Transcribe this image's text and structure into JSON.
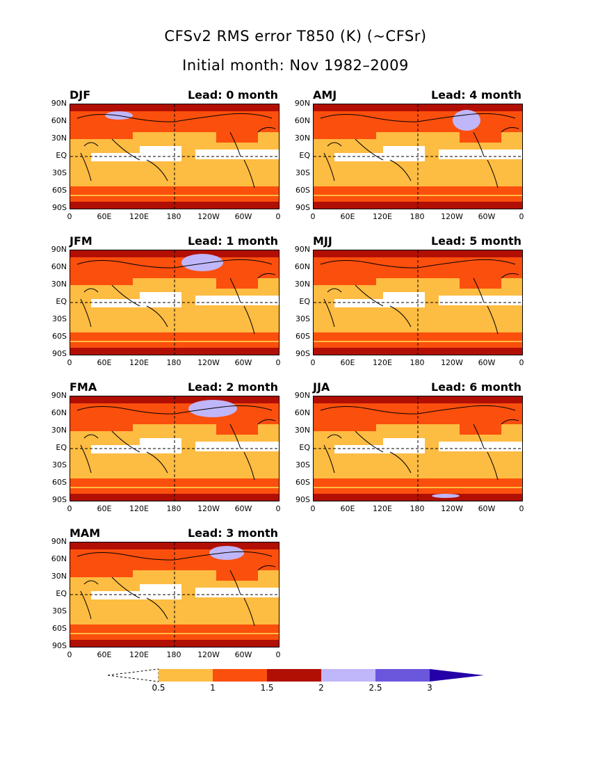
{
  "title": "CFSv2 RMS error T850 (K) (~CFSr)",
  "subtitle": "Initial month: Nov 1982–2009",
  "lead_prefix": "Lead:",
  "panels": [
    {
      "season": "DJF",
      "lead": "Lead: 0 month"
    },
    {
      "season": "AMJ",
      "lead": "Lead: 4 month"
    },
    {
      "season": "JFM",
      "lead": "Lead: 1 month"
    },
    {
      "season": "MJJ",
      "lead": "Lead: 5 month"
    },
    {
      "season": "FMA",
      "lead": "Lead: 2 month"
    },
    {
      "season": "JJA",
      "lead": "Lead: 6 month"
    },
    {
      "season": "MAM",
      "lead": "Lead: 3 month"
    }
  ],
  "lat_ticks": [
    "90N",
    "60N",
    "30N",
    "EQ",
    "30S",
    "60S",
    "90S"
  ],
  "lon_ticks": [
    "0",
    "60E",
    "120E",
    "180",
    "120W",
    "60W",
    "0"
  ],
  "colorbar": {
    "labels": [
      "0.5",
      "1",
      "1.5",
      "2",
      "2.5",
      "3"
    ],
    "colors": [
      "#ffffff",
      "#fdbc42",
      "#fb4f0d",
      "#b10f04",
      "#c0b6fa",
      "#6a57dc",
      "#2400a8"
    ]
  }
}
